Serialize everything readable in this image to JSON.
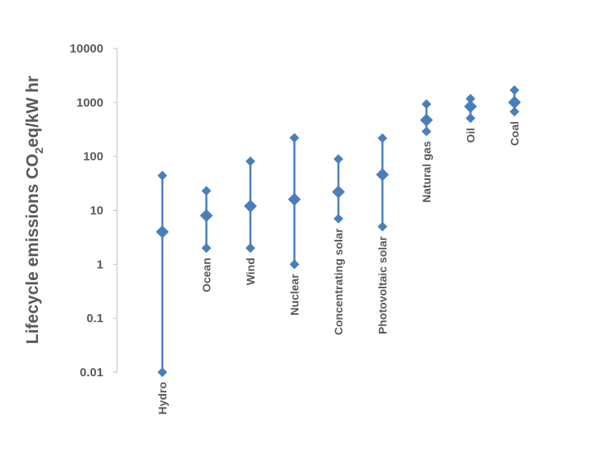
{
  "chart_data": {
    "type": "scatter",
    "y_scale": "log",
    "ylim": [
      0.01,
      10000
    ],
    "y_ticks": [
      "0.01",
      "0.1",
      "1",
      "10",
      "100",
      "1000",
      "10000"
    ],
    "ylabel": {
      "main": "Lifecycle  emissions CO",
      "subscript": "2",
      "rest": "eq/kW hr"
    },
    "grid": false,
    "legend": "none",
    "marker": "diamond",
    "color": "#4a7ebb",
    "categories": [
      "Hydro",
      "Ocean",
      "Wind",
      "Nuclear",
      "Concentrating  solar",
      "Photovoltaic  solar",
      "Natural gas",
      "Oil",
      "Coal"
    ],
    "ranges": [
      {
        "category": "Hydro",
        "min": 0.01,
        "mid": 4,
        "max": 44
      },
      {
        "category": "Ocean",
        "min": 2,
        "mid": 8,
        "max": 23
      },
      {
        "category": "Wind",
        "min": 2,
        "mid": 12,
        "max": 81
      },
      {
        "category": "Nuclear",
        "min": 1,
        "mid": 16,
        "max": 220
      },
      {
        "category": "Concentrating  solar",
        "min": 7,
        "mid": 22,
        "max": 89
      },
      {
        "category": "Photovoltaic  solar",
        "min": 5,
        "mid": 46,
        "max": 217
      },
      {
        "category": "Natural gas",
        "min": 290,
        "mid": 469,
        "max": 930
      },
      {
        "category": "Oil",
        "min": 510,
        "mid": 840,
        "max": 1170
      },
      {
        "category": "Coal",
        "min": 675,
        "mid": 1001,
        "max": 1689
      }
    ]
  }
}
